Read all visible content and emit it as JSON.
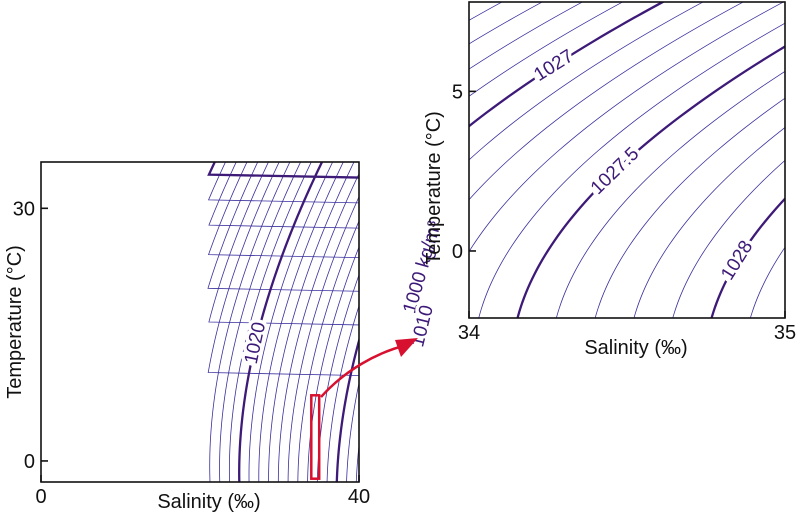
{
  "colors": {
    "contour_thin": "#3a2f9e",
    "contour_major": "#3d1a78",
    "zoom_box": "#d8102f",
    "axis": "#111111"
  },
  "chart_data": [
    {
      "type": "contour",
      "xlabel": "Salinity (‰)",
      "ylabel": "Temperature (°C)",
      "xlim": [
        0,
        40
      ],
      "ylim": [
        -2.5,
        35.5
      ],
      "x_ticks": [
        {
          "value": 0,
          "label": "0"
        },
        {
          "value": 40,
          "label": "40"
        }
      ],
      "y_ticks": [
        {
          "value": 0,
          "label": "0"
        },
        {
          "value": 30,
          "label": "30"
        }
      ],
      "contour_levels_thin": [
        997,
        998,
        999,
        1001,
        1002,
        1003,
        1004,
        1005,
        1006,
        1007,
        1008,
        1009,
        1011,
        1012,
        1013,
        1014,
        1015,
        1016,
        1017,
        1018,
        1019,
        1021,
        1022,
        1023,
        1024,
        1025,
        1026,
        1027,
        1028,
        1029,
        1031,
        1032
      ],
      "contour_levels_major": [
        1000,
        1010,
        1020,
        1030
      ],
      "contour_labels": [
        {
          "text": "1000 kg/m³",
          "level": 1000,
          "at_temperature": 23
        },
        {
          "text": "1010",
          "level": 1010,
          "at_temperature": 16
        },
        {
          "text": "1020",
          "level": 1020,
          "at_temperature": 14
        }
      ],
      "zoom_region": {
        "salinity": [
          34,
          35
        ],
        "temperature": [
          -2.1,
          7.8
        ]
      }
    },
    {
      "type": "contour",
      "xlabel": "Salinity (‰)",
      "ylabel": "Temperature (°C)",
      "xlim": [
        34,
        35
      ],
      "ylim": [
        -2.1,
        7.8
      ],
      "x_ticks": [
        {
          "value": 34,
          "label": "34"
        },
        {
          "value": 35,
          "label": "35"
        }
      ],
      "y_ticks": [
        {
          "value": 0,
          "label": "0"
        },
        {
          "value": 5,
          "label": "5"
        }
      ],
      "contour_levels_thin": [
        1026.5,
        1026.6,
        1026.7,
        1026.8,
        1026.9,
        1027.1,
        1027.2,
        1027.3,
        1027.4,
        1027.6,
        1027.7,
        1027.8,
        1027.9,
        1028.1,
        1028.2
      ],
      "contour_levels_major": [
        1027,
        1027.5,
        1028
      ],
      "contour_labels": [
        {
          "text": "1027",
          "level": 1027,
          "at_temperature": 5.8
        },
        {
          "text": "1027.5",
          "level": 1027.5,
          "at_temperature": 2.5
        },
        {
          "text": "1028",
          "level": 1028,
          "at_temperature": -0.3
        }
      ]
    }
  ]
}
